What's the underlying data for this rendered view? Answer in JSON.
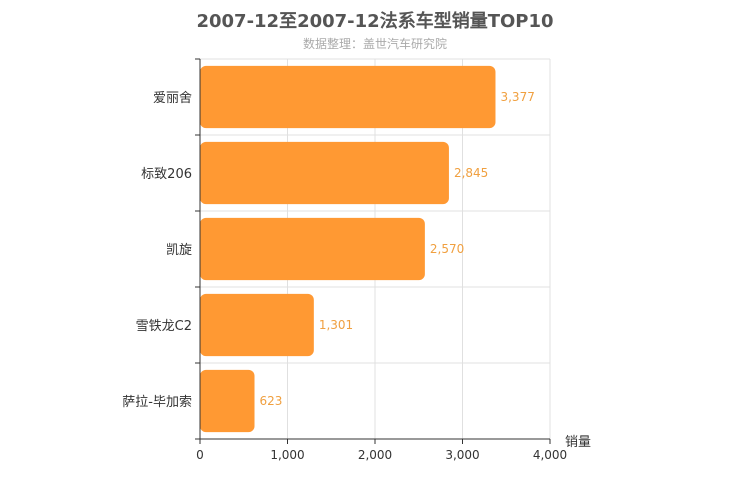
{
  "chart_data": {
    "type": "bar",
    "orientation": "horizontal",
    "title": "2007-12至2007-12法系车型销量TOP10",
    "subtitle": "数据整理：盖世汽车研究院",
    "categories": [
      "爱丽舍",
      "标致206",
      "凯旋",
      "雪铁龙C2",
      "萨拉-毕加索"
    ],
    "values": [
      3377,
      2845,
      2570,
      1301,
      623
    ],
    "value_labels": [
      "3,377",
      "2,845",
      "2,570",
      "1,301",
      "623"
    ],
    "xlabel": "销量",
    "ylabel": "",
    "xlim": [
      0,
      4000
    ],
    "xticks": [
      0,
      1000,
      2000,
      3000,
      4000
    ],
    "xtick_labels": [
      "0",
      "1,000",
      "2,000",
      "3,000",
      "4,000"
    ],
    "grid": true,
    "legend": "none",
    "bar_color": "#ff9933",
    "label_color": "#f0a040"
  }
}
